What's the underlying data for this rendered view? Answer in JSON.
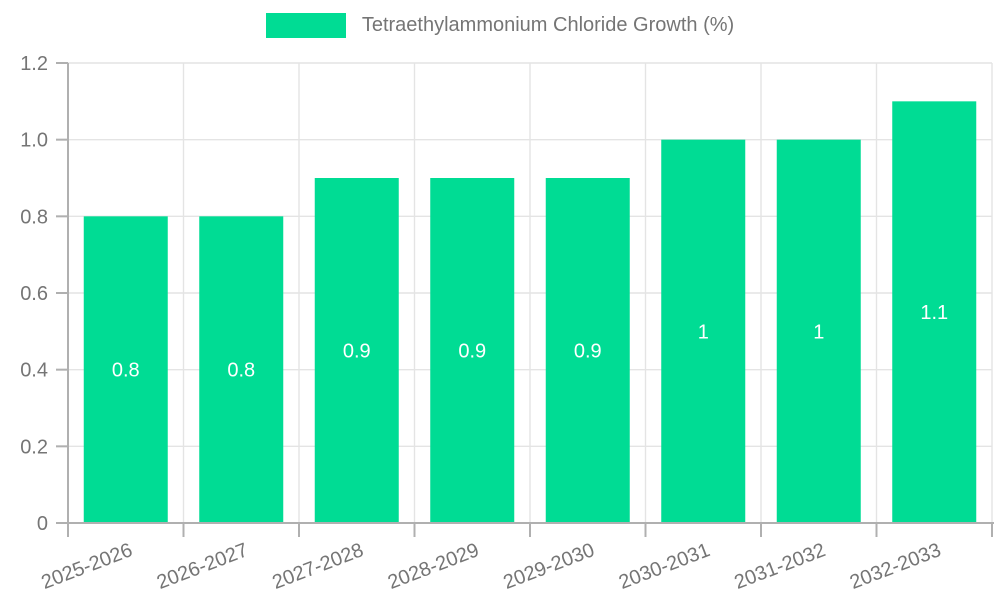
{
  "chart_data": {
    "type": "bar",
    "title": "Tetraethylammonium Chloride Growth (%)",
    "categories": [
      "2025-2026",
      "2026-2027",
      "2027-2028",
      "2028-2029",
      "2029-2030",
      "2030-2031",
      "2031-2032",
      "2032-2033"
    ],
    "values": [
      0.8,
      0.8,
      0.9,
      0.9,
      0.9,
      1,
      1,
      1.1
    ],
    "bar_labels": [
      "0.8",
      "0.8",
      "0.9",
      "0.9",
      "0.9",
      "1",
      "1",
      "1.1"
    ],
    "xlabel": "",
    "ylabel": "",
    "ylim": [
      0,
      1.2
    ],
    "yticks": [
      0,
      0.2,
      0.4,
      0.6,
      0.8,
      1,
      1.2
    ],
    "ytick_labels": [
      "0",
      "0.2",
      "0.4",
      "0.6",
      "0.8",
      "1.0",
      "1.2"
    ],
    "grid": true,
    "legend_position": "top",
    "x_label_rotation_deg": -21,
    "colors": {
      "bar": "#00DC94",
      "grid": "#e4e4e4",
      "axis": "#b0b0b0",
      "tick_text": "#757575",
      "bar_label_text": "#ffffff",
      "legend_text": "#757575",
      "background": "#ffffff"
    }
  }
}
